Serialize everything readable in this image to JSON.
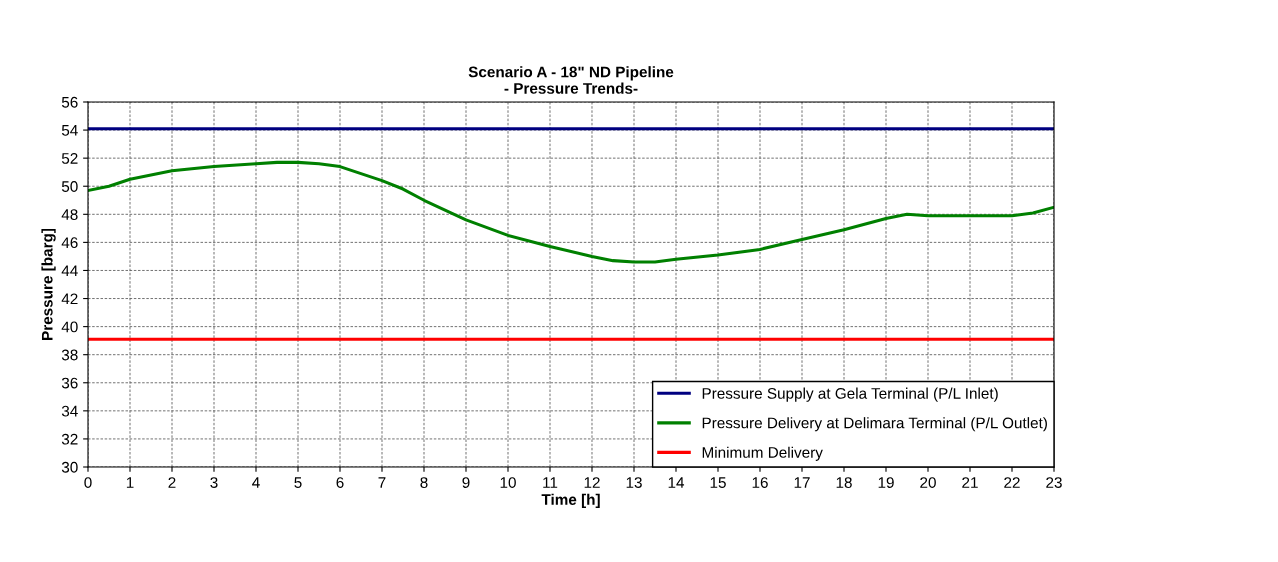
{
  "chart_data": {
    "type": "line",
    "title": "Scenario A - 18\" ND Pipeline\n- Pressure Trends-",
    "xlabel": "Time [h]",
    "ylabel": "Pressure [barg]",
    "xlim": [
      0,
      23
    ],
    "xticks": [
      0,
      1,
      2,
      3,
      4,
      5,
      6,
      7,
      8,
      9,
      10,
      11,
      12,
      13,
      14,
      15,
      16,
      17,
      18,
      19,
      20,
      21,
      22,
      23
    ],
    "ylim": [
      30,
      56
    ],
    "yticks": [
      30,
      32,
      34,
      36,
      38,
      40,
      42,
      44,
      46,
      48,
      50,
      52,
      54,
      56
    ],
    "grid": true,
    "legend": "bottom right",
    "marker": "none",
    "line_style": "solid",
    "series": [
      {
        "name": "Pressure Supply at Gela Terminal (P/L Inlet)",
        "color": "#000080",
        "x": [
          0,
          23
        ],
        "values": [
          54.1,
          54.1
        ]
      },
      {
        "name": "Pressure Delivery at Delimara Terminal (P/L Outlet)",
        "color": "#008000",
        "x": [
          0,
          0.5,
          1,
          2,
          3,
          4,
          4.5,
          5,
          5.5,
          6,
          7,
          7.5,
          8,
          9,
          10,
          11,
          12,
          12.5,
          13,
          13.5,
          14,
          15,
          16,
          17,
          18,
          19,
          19.5,
          20,
          21,
          22,
          22.5,
          23
        ],
        "values": [
          49.7,
          50.0,
          50.5,
          51.1,
          51.4,
          51.6,
          51.7,
          51.7,
          51.6,
          51.4,
          50.4,
          49.8,
          49.0,
          47.6,
          46.5,
          45.7,
          45.0,
          44.7,
          44.6,
          44.6,
          44.8,
          45.1,
          45.5,
          46.2,
          46.9,
          47.7,
          48.0,
          47.9,
          47.9,
          47.9,
          48.1,
          48.5
        ]
      },
      {
        "name": "Minimum Delivery",
        "color": "#ff0000",
        "x": [
          0,
          23
        ],
        "values": [
          39.1,
          39.1
        ]
      }
    ]
  }
}
